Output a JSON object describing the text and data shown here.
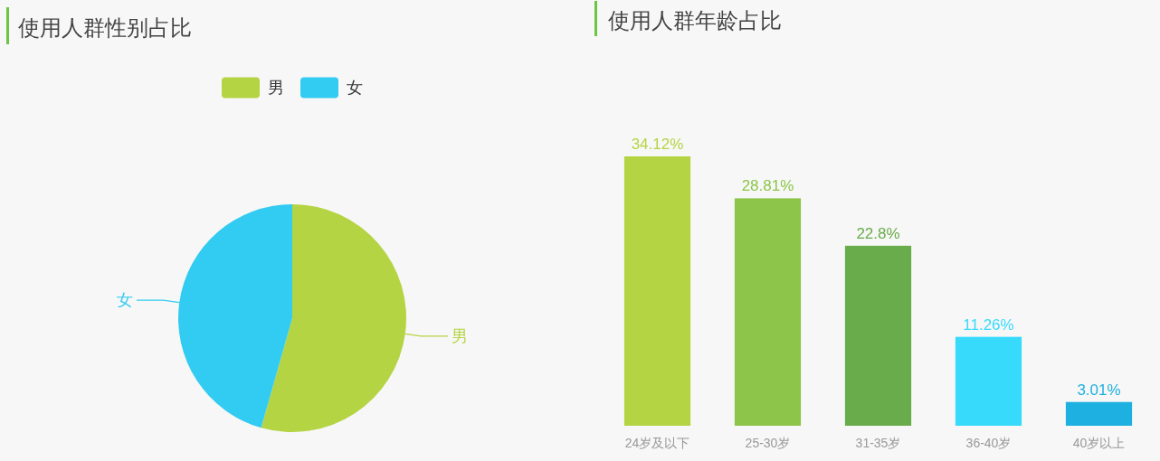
{
  "chart_data": [
    {
      "type": "pie",
      "title": "使用人群性别占比",
      "categories": [
        "男",
        "女"
      ],
      "values": [
        54.4,
        45.6
      ],
      "colors": [
        "#b5d444",
        "#32cbf2"
      ],
      "legend": "top"
    },
    {
      "type": "bar",
      "title": "使用人群年龄占比",
      "categories": [
        "24岁及以下",
        "25-30岁",
        "31-35岁",
        "36-40岁",
        "40岁以上"
      ],
      "values": [
        34.12,
        28.81,
        22.8,
        11.26,
        3.01
      ],
      "colors": [
        "#b5d444",
        "#8dc54a",
        "#68ac4b",
        "#38dafc",
        "#1db0e0"
      ],
      "value_labels": [
        "34.12%",
        "28.81%",
        "22.8%",
        "11.26%",
        "3.01%"
      ]
    }
  ]
}
